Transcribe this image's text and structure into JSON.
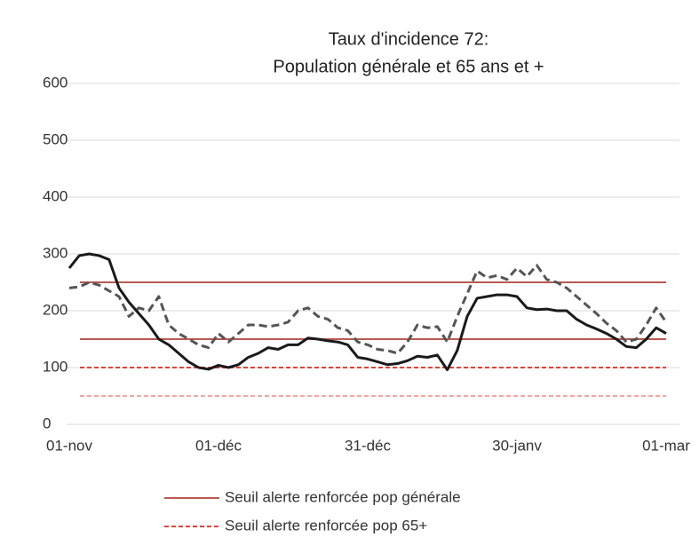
{
  "chart_data": {
    "type": "line",
    "title": [
      "Taux d'incidence 72:",
      "Population générale et 65 ans et +"
    ],
    "x": [
      0,
      2,
      4,
      6,
      8,
      10,
      12,
      14,
      16,
      18,
      20,
      22,
      24,
      26,
      28,
      30,
      32,
      34,
      36,
      38,
      40,
      42,
      44,
      46,
      48,
      50,
      52,
      54,
      56,
      58,
      60,
      62,
      64,
      66,
      68,
      70,
      72,
      74,
      76,
      78,
      80,
      82,
      84,
      86,
      88,
      90,
      92,
      94,
      96,
      98,
      100,
      102,
      104,
      106,
      108,
      110,
      112,
      114,
      116,
      118,
      120
    ],
    "xlim": [
      0,
      120
    ],
    "xticks": [
      {
        "value": 0,
        "label": "01-nov"
      },
      {
        "value": 30,
        "label": "01-déc"
      },
      {
        "value": 60,
        "label": "31-déc"
      },
      {
        "value": 90,
        "label": "30-janv"
      },
      {
        "value": 120,
        "label": "01-mar"
      }
    ],
    "ylim": [
      0,
      600
    ],
    "yticks": [
      0,
      100,
      200,
      300,
      400,
      500,
      600
    ],
    "grid": true,
    "series": [
      {
        "color": "#1a1a1a",
        "dash": false,
        "values": [
          275,
          297,
          300,
          297,
          290,
          240,
          215,
          195,
          175,
          150,
          140,
          125,
          110,
          100,
          97,
          104,
          100,
          105,
          118,
          125,
          135,
          132,
          140,
          140,
          152,
          150,
          147,
          145,
          140,
          118,
          115,
          110,
          105,
          107,
          112,
          120,
          118,
          122,
          96,
          130,
          190,
          222,
          225,
          228,
          228,
          225,
          205,
          202,
          203,
          200,
          200,
          185,
          175,
          168,
          160,
          150,
          137,
          135,
          150,
          170,
          160
        ]
      },
      {
        "color": "#555555",
        "dash": true,
        "values": [
          240,
          242,
          250,
          245,
          235,
          225,
          190,
          205,
          200,
          225,
          175,
          160,
          150,
          140,
          135,
          160,
          145,
          160,
          175,
          175,
          172,
          175,
          180,
          200,
          205,
          190,
          185,
          170,
          165,
          145,
          140,
          132,
          130,
          125,
          145,
          175,
          170,
          172,
          145,
          190,
          230,
          270,
          258,
          262,
          255,
          275,
          260,
          280,
          255,
          250,
          240,
          225,
          210,
          195,
          178,
          165,
          145,
          150,
          175,
          205,
          180
        ]
      }
    ],
    "hlines": [
      {
        "value": 250,
        "color": "#b85a52",
        "dash": false
      },
      {
        "value": 150,
        "color": "#b85a52",
        "dash": false,
        "name": "Seuil alerte renforcée pop générale"
      },
      {
        "value": 100,
        "color": "#e0443a",
        "dash": true,
        "name": "Seuil alerte renforcée pop 65+"
      },
      {
        "value": 50,
        "color": "#f0a8a0",
        "dash": true
      }
    ]
  }
}
